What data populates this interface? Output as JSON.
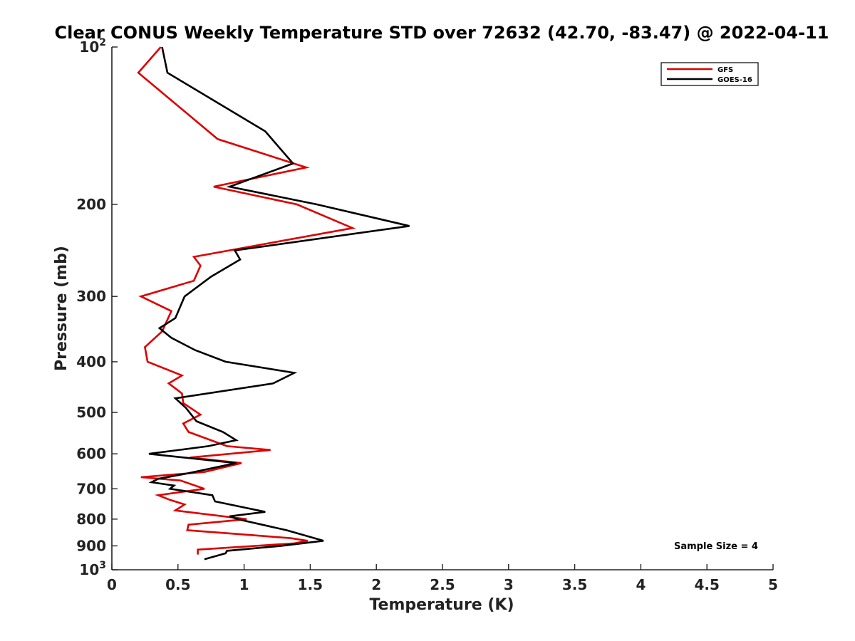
{
  "chart_data": {
    "type": "line",
    "title": "Clear CONUS Weekly Temperature STD over 72632 (42.70, -83.47) @ 2022-04-11",
    "xlabel": "Temperature (K)",
    "ylabel": "Pressure (mb)",
    "xlim": [
      0,
      5
    ],
    "ylim": [
      100,
      1000
    ],
    "y_scale": "log",
    "y_reversed": true,
    "x_ticks": [
      0,
      0.5,
      1,
      1.5,
      2,
      2.5,
      3,
      3.5,
      4,
      4.5,
      5
    ],
    "x_tick_labels": [
      "0",
      "0.5",
      "1",
      "1.5",
      "2",
      "2.5",
      "3",
      "3.5",
      "4",
      "4.5",
      "5"
    ],
    "y_ticks": [
      {
        "value": 100,
        "base": "10",
        "exp": "2",
        "label": ""
      },
      {
        "value": 200,
        "label": "200"
      },
      {
        "value": 300,
        "label": "300"
      },
      {
        "value": 400,
        "label": "400"
      },
      {
        "value": 500,
        "label": "500"
      },
      {
        "value": 600,
        "label": "600"
      },
      {
        "value": 700,
        "label": "700"
      },
      {
        "value": 800,
        "label": "800"
      },
      {
        "value": 900,
        "label": "900"
      },
      {
        "value": 1000,
        "base": "10",
        "exp": "3",
        "label": ""
      }
    ],
    "grid": false,
    "legend_position": "top-right",
    "annotation": "Sample Size = 4",
    "series": [
      {
        "name": "GFS",
        "color": "#dd0000",
        "x": [
          0.37,
          0.2,
          0.8,
          1.47,
          0.77,
          1.4,
          1.82,
          0.62,
          0.67,
          0.62,
          0.22,
          0.45,
          0.38,
          0.25,
          0.27,
          0.53,
          0.43,
          0.53,
          0.54,
          0.67,
          0.54,
          0.58,
          0.87,
          1.2,
          0.59,
          0.98,
          0.7,
          0.22,
          0.52,
          0.7,
          0.35,
          0.44,
          0.55,
          0.48,
          1.02,
          0.58,
          0.57,
          0.97,
          1.35,
          1.48,
          1.38,
          0.65,
          0.65
        ],
        "y": [
          100,
          112,
          150,
          170,
          185,
          200,
          222,
          252,
          262,
          280,
          300,
          320,
          350,
          375,
          400,
          425,
          440,
          460,
          480,
          505,
          525,
          545,
          580,
          590,
          610,
          625,
          650,
          665,
          675,
          700,
          720,
          735,
          750,
          770,
          800,
          820,
          840,
          855,
          870,
          880,
          890,
          915,
          935
        ]
      },
      {
        "name": "GOES-16",
        "color": "#000000",
        "x": [
          0.38,
          0.42,
          1.16,
          1.37,
          0.89,
          1.55,
          2.25,
          0.93,
          0.97,
          0.75,
          0.55,
          0.48,
          0.36,
          0.45,
          0.63,
          0.86,
          1.38,
          1.22,
          0.48,
          0.56,
          0.64,
          0.84,
          0.94,
          0.73,
          0.28,
          0.94,
          0.56,
          0.35,
          0.3,
          0.47,
          0.44,
          0.76,
          0.78,
          1.0,
          1.16,
          0.89,
          0.95,
          1.32,
          1.6,
          1.28,
          0.87,
          0.86,
          0.7
        ],
        "y": [
          100,
          112,
          145,
          167,
          185,
          200,
          220,
          245,
          255,
          275,
          300,
          330,
          345,
          360,
          380,
          400,
          420,
          440,
          470,
          490,
          520,
          545,
          565,
          580,
          600,
          625,
          655,
          670,
          680,
          690,
          700,
          720,
          740,
          760,
          775,
          790,
          800,
          840,
          880,
          900,
          920,
          930,
          955
        ]
      }
    ]
  }
}
